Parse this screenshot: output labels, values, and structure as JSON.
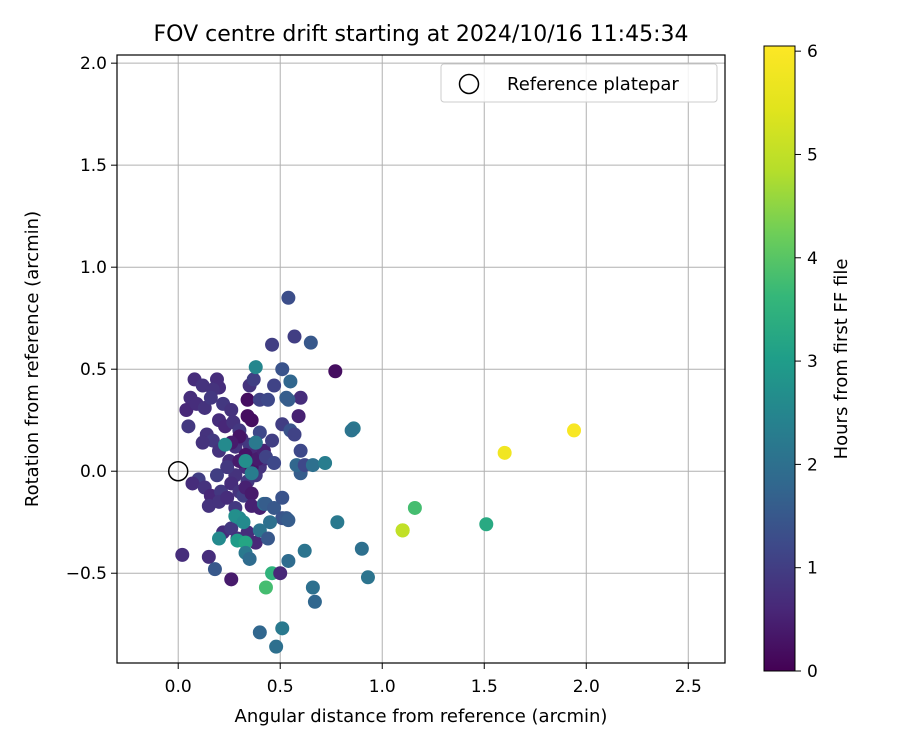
{
  "chart_data": {
    "type": "scatter",
    "title": "FOV centre drift starting at 2024/10/16 11:45:34",
    "xlabel": "Angular distance from reference (arcmin)",
    "ylabel": "Rotation from reference (arcmin)",
    "xlim": [
      -0.3,
      2.68
    ],
    "ylim": [
      -0.94,
      2.04
    ],
    "x_ticks": [
      0.0,
      0.5,
      1.0,
      1.5,
      2.0,
      2.5
    ],
    "x_tick_labels": [
      "0.0",
      "0.5",
      "1.0",
      "1.5",
      "2.0",
      "2.5"
    ],
    "y_ticks": [
      -0.5,
      0.0,
      0.5,
      1.0,
      1.5,
      2.0
    ],
    "y_tick_labels": [
      "−0.5",
      "0.0",
      "0.5",
      "1.0",
      "1.5",
      "2.0"
    ],
    "grid": true,
    "legend": {
      "position": "top-right",
      "label": "Reference platepar"
    },
    "reference_point": {
      "x": 0.0,
      "y": 0.0
    },
    "colorbar": {
      "label": "Hours from first FF file",
      "range": [
        0,
        6.05
      ],
      "colormap": "viridis",
      "ticks": [
        0,
        1,
        2,
        3,
        4,
        5,
        6
      ],
      "tick_labels": [
        "0",
        "1",
        "2",
        "3",
        "4",
        "5",
        "6"
      ]
    },
    "points": [
      {
        "x": 0.08,
        "y": 0.45,
        "c": 0.7
      },
      {
        "x": 0.19,
        "y": 0.45,
        "c": 0.7
      },
      {
        "x": 0.12,
        "y": 0.42,
        "c": 0.8
      },
      {
        "x": 0.2,
        "y": 0.41,
        "c": 0.7
      },
      {
        "x": 0.17,
        "y": 0.4,
        "c": 0.8
      },
      {
        "x": 0.06,
        "y": 0.36,
        "c": 0.7
      },
      {
        "x": 0.04,
        "y": 0.3,
        "c": 0.6
      },
      {
        "x": 0.09,
        "y": 0.33,
        "c": 0.7
      },
      {
        "x": 0.13,
        "y": 0.31,
        "c": 0.8
      },
      {
        "x": 0.16,
        "y": 0.36,
        "c": 0.9
      },
      {
        "x": 0.22,
        "y": 0.33,
        "c": 0.9
      },
      {
        "x": 0.26,
        "y": 0.3,
        "c": 0.8
      },
      {
        "x": 0.05,
        "y": 0.22,
        "c": 0.9
      },
      {
        "x": 0.14,
        "y": 0.18,
        "c": 0.8
      },
      {
        "x": 0.2,
        "y": 0.25,
        "c": 0.7
      },
      {
        "x": 0.23,
        "y": 0.22,
        "c": 0.6
      },
      {
        "x": 0.27,
        "y": 0.24,
        "c": 0.8
      },
      {
        "x": 0.3,
        "y": 0.2,
        "c": 0.9
      },
      {
        "x": 0.17,
        "y": 0.15,
        "c": 0.9
      },
      {
        "x": 0.12,
        "y": 0.14,
        "c": 0.8
      },
      {
        "x": 0.2,
        "y": 0.1,
        "c": 0.8
      },
      {
        "x": 0.25,
        "y": 0.05,
        "c": 0.7
      },
      {
        "x": 0.28,
        "y": 0.12,
        "c": 0.8
      },
      {
        "x": 0.31,
        "y": 0.16,
        "c": 0.7
      },
      {
        "x": 0.35,
        "y": 0.13,
        "c": 0.9
      },
      {
        "x": 0.37,
        "y": 0.08,
        "c": 0.6
      },
      {
        "x": 0.33,
        "y": 0.02,
        "c": 0.7
      },
      {
        "x": 0.28,
        "y": -0.02,
        "c": 0.8
      },
      {
        "x": 0.24,
        "y": 0.02,
        "c": 0.9
      },
      {
        "x": 0.19,
        "y": -0.02,
        "c": 1.0
      },
      {
        "x": 0.1,
        "y": -0.04,
        "c": 1.0
      },
      {
        "x": 0.07,
        "y": -0.06,
        "c": 0.7
      },
      {
        "x": 0.13,
        "y": -0.08,
        "c": 0.8
      },
      {
        "x": 0.16,
        "y": -0.12,
        "c": 0.6
      },
      {
        "x": 0.21,
        "y": -0.1,
        "c": 0.9
      },
      {
        "x": 0.26,
        "y": -0.06,
        "c": 0.7
      },
      {
        "x": 0.3,
        "y": -0.1,
        "c": 0.8
      },
      {
        "x": 0.34,
        "y": -0.05,
        "c": 0.9
      },
      {
        "x": 0.38,
        "y": -0.02,
        "c": 0.9
      },
      {
        "x": 0.4,
        "y": 0.02,
        "c": 0.8
      },
      {
        "x": 0.42,
        "y": 0.06,
        "c": 0.7
      },
      {
        "x": 0.15,
        "y": -0.17,
        "c": 0.8
      },
      {
        "x": 0.2,
        "y": -0.15,
        "c": 0.8
      },
      {
        "x": 0.24,
        "y": -0.13,
        "c": 0.7
      },
      {
        "x": 0.28,
        "y": -0.18,
        "c": 0.9
      },
      {
        "x": 0.32,
        "y": -0.12,
        "c": 1.0
      },
      {
        "x": 0.22,
        "y": -0.3,
        "c": 0.7
      },
      {
        "x": 0.26,
        "y": -0.28,
        "c": 0.9
      },
      {
        "x": 0.29,
        "y": -0.33,
        "c": 0.8
      },
      {
        "x": 0.34,
        "y": -0.3,
        "c": 0.7
      },
      {
        "x": 0.38,
        "y": -0.35,
        "c": 0.6
      },
      {
        "x": 0.15,
        "y": -0.42,
        "c": 0.7
      },
      {
        "x": 0.02,
        "y": -0.41,
        "c": 0.7
      },
      {
        "x": 0.26,
        "y": -0.53,
        "c": 0.4
      },
      {
        "x": 0.34,
        "y": 0.27,
        "c": 0.2
      },
      {
        "x": 0.34,
        "y": 0.35,
        "c": 0.2
      },
      {
        "x": 0.36,
        "y": 0.25,
        "c": 0.2
      },
      {
        "x": 0.3,
        "y": 0.17,
        "c": 0.3
      },
      {
        "x": 0.26,
        "y": 0.14,
        "c": 0.4
      },
      {
        "x": 0.33,
        "y": 0.08,
        "c": 0.3
      },
      {
        "x": 0.3,
        "y": 0.05,
        "c": 0.4
      },
      {
        "x": 0.36,
        "y": 0.02,
        "c": 0.3
      },
      {
        "x": 0.39,
        "y": 0.06,
        "c": 0.4
      },
      {
        "x": 0.33,
        "y": -0.08,
        "c": 0.5
      },
      {
        "x": 0.36,
        "y": -0.11,
        "c": 0.4
      },
      {
        "x": 0.36,
        "y": -0.17,
        "c": 0.5
      },
      {
        "x": 0.4,
        "y": -0.18,
        "c": 0.5
      },
      {
        "x": 0.42,
        "y": 0.1,
        "c": 0.5
      },
      {
        "x": 0.35,
        "y": 0.42,
        "c": 0.8
      },
      {
        "x": 0.37,
        "y": 0.45,
        "c": 1.0
      },
      {
        "x": 0.4,
        "y": 0.35,
        "c": 1.1
      },
      {
        "x": 0.44,
        "y": 0.35,
        "c": 1.2
      },
      {
        "x": 0.47,
        "y": 0.42,
        "c": 1.1
      },
      {
        "x": 0.46,
        "y": 0.62,
        "c": 1.0
      },
      {
        "x": 0.54,
        "y": 0.85,
        "c": 1.3
      },
      {
        "x": 0.57,
        "y": 0.66,
        "c": 1.0
      },
      {
        "x": 0.6,
        "y": 0.36,
        "c": 0.7
      },
      {
        "x": 0.59,
        "y": 0.27,
        "c": 0.5
      },
      {
        "x": 0.51,
        "y": 0.23,
        "c": 1.0
      },
      {
        "x": 0.46,
        "y": 0.15,
        "c": 1.0
      },
      {
        "x": 0.43,
        "y": 0.07,
        "c": 1.1
      },
      {
        "x": 0.47,
        "y": 0.04,
        "c": 1.2
      },
      {
        "x": 0.4,
        "y": 0.19,
        "c": 1.2
      },
      {
        "x": 0.38,
        "y": 0.14,
        "c": 1.4
      },
      {
        "x": 0.55,
        "y": 0.2,
        "c": 1.4
      },
      {
        "x": 0.57,
        "y": 0.18,
        "c": 1.1
      },
      {
        "x": 0.6,
        "y": 0.1,
        "c": 1.2
      },
      {
        "x": 0.6,
        "y": -0.01,
        "c": 1.6
      },
      {
        "x": 0.58,
        "y": 0.03,
        "c": 1.8
      },
      {
        "x": 0.62,
        "y": 0.03,
        "c": 1.2
      },
      {
        "x": 0.66,
        "y": 0.03,
        "c": 2.0
      },
      {
        "x": 0.72,
        "y": 0.04,
        "c": 2.3
      },
      {
        "x": 0.51,
        "y": 0.5,
        "c": 1.4
      },
      {
        "x": 0.54,
        "y": 0.35,
        "c": 1.6
      },
      {
        "x": 0.55,
        "y": 0.44,
        "c": 1.8
      },
      {
        "x": 0.65,
        "y": 0.63,
        "c": 1.5
      },
      {
        "x": 0.53,
        "y": 0.36,
        "c": 1.6
      },
      {
        "x": 0.77,
        "y": 0.49,
        "c": 0.2
      },
      {
        "x": 0.86,
        "y": 0.21,
        "c": 2.2
      },
      {
        "x": 0.85,
        "y": 0.2,
        "c": 2.1
      },
      {
        "x": 0.38,
        "y": 0.51,
        "c": 2.5
      },
      {
        "x": 0.38,
        "y": 0.14,
        "c": 2.2
      },
      {
        "x": 0.23,
        "y": 0.13,
        "c": 2.6
      },
      {
        "x": 0.33,
        "y": 0.05,
        "c": 2.7
      },
      {
        "x": 0.36,
        "y": -0.01,
        "c": 2.3
      },
      {
        "x": 0.42,
        "y": -0.16,
        "c": 1.9
      },
      {
        "x": 0.43,
        "y": -0.16,
        "c": 1.6
      },
      {
        "x": 0.47,
        "y": -0.18,
        "c": 1.5
      },
      {
        "x": 0.51,
        "y": -0.13,
        "c": 1.4
      },
      {
        "x": 0.51,
        "y": -0.23,
        "c": 1.4
      },
      {
        "x": 0.53,
        "y": -0.23,
        "c": 1.5
      },
      {
        "x": 0.54,
        "y": -0.24,
        "c": 1.6
      },
      {
        "x": 0.45,
        "y": -0.25,
        "c": 2.0
      },
      {
        "x": 0.4,
        "y": -0.29,
        "c": 2.1
      },
      {
        "x": 0.3,
        "y": -0.23,
        "c": 2.5
      },
      {
        "x": 0.28,
        "y": -0.22,
        "c": 2.7
      },
      {
        "x": 0.32,
        "y": -0.25,
        "c": 2.6
      },
      {
        "x": 0.2,
        "y": -0.33,
        "c": 2.6
      },
      {
        "x": 0.29,
        "y": -0.34,
        "c": 3.0
      },
      {
        "x": 0.33,
        "y": -0.35,
        "c": 3.2
      },
      {
        "x": 0.33,
        "y": -0.4,
        "c": 2.2
      },
      {
        "x": 0.35,
        "y": -0.43,
        "c": 1.9
      },
      {
        "x": 0.44,
        "y": -0.33,
        "c": 1.5
      },
      {
        "x": 0.54,
        "y": -0.44,
        "c": 1.9
      },
      {
        "x": 0.62,
        "y": -0.39,
        "c": 2.1
      },
      {
        "x": 0.46,
        "y": -0.5,
        "c": 3.5
      },
      {
        "x": 0.5,
        "y": -0.5,
        "c": 0.6
      },
      {
        "x": 0.43,
        "y": -0.57,
        "c": 3.8
      },
      {
        "x": 0.18,
        "y": -0.48,
        "c": 1.5
      },
      {
        "x": 0.4,
        "y": -0.79,
        "c": 1.8
      },
      {
        "x": 0.48,
        "y": -0.86,
        "c": 2.0
      },
      {
        "x": 0.51,
        "y": -0.77,
        "c": 2.2
      },
      {
        "x": 0.66,
        "y": -0.57,
        "c": 2.0
      },
      {
        "x": 0.67,
        "y": -0.64,
        "c": 1.8
      },
      {
        "x": 0.78,
        "y": -0.25,
        "c": 2.2
      },
      {
        "x": 0.9,
        "y": -0.38,
        "c": 2.0
      },
      {
        "x": 0.93,
        "y": -0.52,
        "c": 2.1
      },
      {
        "x": 1.1,
        "y": -0.29,
        "c": 4.8
      },
      {
        "x": 1.1,
        "y": -0.29,
        "c": 5.0
      },
      {
        "x": 1.16,
        "y": -0.18,
        "c": 3.8
      },
      {
        "x": 1.51,
        "y": -0.26,
        "c": 3.3
      },
      {
        "x": 1.6,
        "y": 0.09,
        "c": 5.8
      },
      {
        "x": 1.94,
        "y": 0.2,
        "c": 5.95
      }
    ]
  }
}
